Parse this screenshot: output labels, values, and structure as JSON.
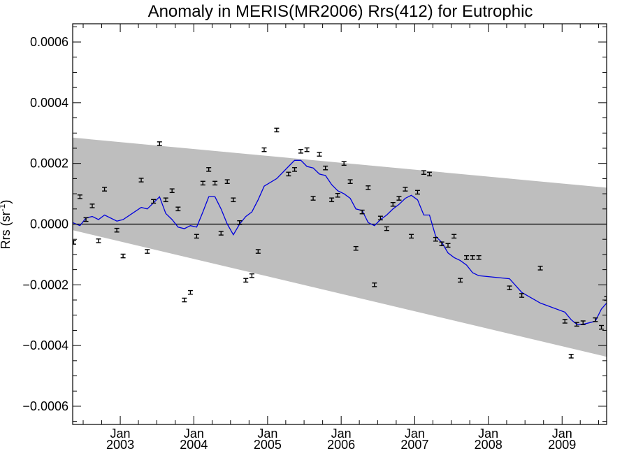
{
  "chart_data": {
    "type": "line",
    "title": "Anomaly in MERIS(MR2006) Rrs(412) for Eutrophic",
    "ylabel": "Rrs (sr",
    "ylabel_superscript": "-1",
    "ylabel_close": ")",
    "xlim": [
      "2002-05-10",
      "2009-08-10"
    ],
    "ylim": [
      -0.00066,
      0.00066
    ],
    "y_ticks": [
      -0.0006,
      -0.0004,
      -0.0002,
      0.0,
      0.0002,
      0.0004,
      0.0006
    ],
    "y_tick_labels": [
      "−0.0006",
      "−0.0004",
      "−0.0002",
      "0.0000",
      "0.0002",
      "0.0004",
      "0.0006"
    ],
    "x_ticks": [
      {
        "date": "2003-01-01",
        "month": "Jan",
        "year": "2003"
      },
      {
        "date": "2004-01-01",
        "month": "Jan",
        "year": "2004"
      },
      {
        "date": "2005-01-01",
        "month": "Jan",
        "year": "2005"
      },
      {
        "date": "2006-01-01",
        "month": "Jan",
        "year": "2006"
      },
      {
        "date": "2007-01-01",
        "month": "Jan",
        "year": "2007"
      },
      {
        "date": "2008-01-01",
        "month": "Jan",
        "year": "2008"
      },
      {
        "date": "2009-01-01",
        "month": "Jan",
        "year": "2009"
      }
    ],
    "zero_line": 0.0,
    "band": {
      "upper": [
        [
          "2002-05-10",
          0.000285
        ],
        [
          "2009-08-10",
          0.00012
        ]
      ],
      "lower": [
        [
          "2002-05-10",
          -2e-05
        ],
        [
          "2009-08-10",
          -0.000437
        ]
      ],
      "color": "#bebebe"
    },
    "series": [
      {
        "type": "errorbar",
        "color": "#000000",
        "error": 6e-06,
        "points": [
          [
            "2002-05-15",
            -6e-05
          ],
          [
            "2002-06-15",
            9e-05
          ],
          [
            "2002-07-15",
            1.5e-05
          ],
          [
            "2002-08-15",
            6e-05
          ],
          [
            "2002-09-15",
            -5.5e-05
          ],
          [
            "2002-10-15",
            0.000115
          ],
          [
            "2002-12-15",
            -2e-05
          ],
          [
            "2003-01-15",
            -0.000105
          ],
          [
            "2003-04-15",
            0.000145
          ],
          [
            "2003-05-15",
            -9e-05
          ],
          [
            "2003-06-15",
            7.5e-05
          ],
          [
            "2003-07-15",
            0.000265
          ],
          [
            "2003-08-15",
            8e-05
          ],
          [
            "2003-09-15",
            0.00011
          ],
          [
            "2003-10-15",
            5e-05
          ],
          [
            "2003-11-15",
            -0.00025
          ],
          [
            "2003-12-15",
            -0.000225
          ],
          [
            "2004-01-15",
            -4e-05
          ],
          [
            "2004-02-15",
            0.000135
          ],
          [
            "2004-03-15",
            0.00018
          ],
          [
            "2004-04-15",
            0.000135
          ],
          [
            "2004-05-15",
            -3e-05
          ],
          [
            "2004-06-15",
            0.00014
          ],
          [
            "2004-07-15",
            8e-05
          ],
          [
            "2004-08-15",
            5e-06
          ],
          [
            "2004-09-15",
            -0.000185
          ],
          [
            "2004-10-15",
            -0.00017
          ],
          [
            "2004-11-15",
            -9e-05
          ],
          [
            "2004-12-15",
            0.000245
          ],
          [
            "2005-02-15",
            0.00031
          ],
          [
            "2005-04-15",
            0.000165
          ],
          [
            "2005-05-15",
            0.00018
          ],
          [
            "2005-06-15",
            0.00024
          ],
          [
            "2005-07-15",
            0.000245
          ],
          [
            "2005-08-15",
            8.5e-05
          ],
          [
            "2005-09-15",
            0.00023
          ],
          [
            "2005-10-15",
            0.000185
          ],
          [
            "2005-11-15",
            8e-05
          ],
          [
            "2005-12-15",
            9.5e-05
          ],
          [
            "2006-01-15",
            0.0002
          ],
          [
            "2006-02-15",
            0.00014
          ],
          [
            "2006-03-15",
            -8e-05
          ],
          [
            "2006-04-15",
            4e-05
          ],
          [
            "2006-05-15",
            0.00012
          ],
          [
            "2006-06-15",
            -0.0002
          ],
          [
            "2006-07-15",
            2e-05
          ],
          [
            "2006-08-15",
            -1.5e-05
          ],
          [
            "2006-09-15",
            6.5e-05
          ],
          [
            "2006-10-15",
            8.5e-05
          ],
          [
            "2006-11-15",
            0.000115
          ],
          [
            "2006-12-15",
            -4e-05
          ],
          [
            "2007-01-15",
            0.000105
          ],
          [
            "2007-02-15",
            0.00017
          ],
          [
            "2007-03-15",
            0.000165
          ],
          [
            "2007-04-15",
            -5e-05
          ],
          [
            "2007-05-15",
            -6.5e-05
          ],
          [
            "2007-06-15",
            -7e-05
          ],
          [
            "2007-07-15",
            -4e-05
          ],
          [
            "2007-08-15",
            -0.000185
          ],
          [
            "2007-09-15",
            -0.00011
          ],
          [
            "2007-10-15",
            -0.00011
          ],
          [
            "2007-11-15",
            -0.00011
          ],
          [
            "2008-04-15",
            -0.00021
          ],
          [
            "2008-06-15",
            -0.000235
          ],
          [
            "2008-09-15",
            -0.000145
          ],
          [
            "2009-01-15",
            -0.00032
          ],
          [
            "2009-02-15",
            -0.000435
          ],
          [
            "2009-03-15",
            -0.00033
          ],
          [
            "2009-04-15",
            -0.000325
          ],
          [
            "2009-06-15",
            -0.000315
          ],
          [
            "2009-07-15",
            -0.00034
          ],
          [
            "2009-08-10",
            -0.000245
          ]
        ]
      },
      {
        "type": "line",
        "color": "#0000dd",
        "points": [
          [
            "2002-05-10",
            5e-06
          ],
          [
            "2002-06-15",
            -5e-06
          ],
          [
            "2002-07-15",
            2e-05
          ],
          [
            "2002-08-15",
            2.5e-05
          ],
          [
            "2002-09-15",
            1.5e-05
          ],
          [
            "2002-10-15",
            3e-05
          ],
          [
            "2002-12-15",
            1e-05
          ],
          [
            "2003-01-15",
            1.5e-05
          ],
          [
            "2003-04-15",
            5.5e-05
          ],
          [
            "2003-05-15",
            5e-05
          ],
          [
            "2003-06-15",
            7e-05
          ],
          [
            "2003-07-15",
            9e-05
          ],
          [
            "2003-08-15",
            3.5e-05
          ],
          [
            "2003-09-15",
            1.5e-05
          ],
          [
            "2003-10-15",
            -1e-05
          ],
          [
            "2003-11-15",
            -1.5e-05
          ],
          [
            "2003-12-15",
            -5e-06
          ],
          [
            "2004-01-15",
            -1e-05
          ],
          [
            "2004-02-15",
            4e-05
          ],
          [
            "2004-03-15",
            9e-05
          ],
          [
            "2004-04-15",
            9e-05
          ],
          [
            "2004-05-15",
            5e-05
          ],
          [
            "2004-06-15",
            0.0
          ],
          [
            "2004-07-15",
            -3.5e-05
          ],
          [
            "2004-08-15",
            0.0
          ],
          [
            "2004-09-15",
            2.5e-05
          ],
          [
            "2004-10-15",
            4e-05
          ],
          [
            "2004-11-15",
            8e-05
          ],
          [
            "2004-12-15",
            0.000125
          ],
          [
            "2005-02-15",
            0.00015
          ],
          [
            "2005-04-15",
            0.00019
          ],
          [
            "2005-05-15",
            0.00021
          ],
          [
            "2005-06-15",
            0.00021
          ],
          [
            "2005-07-15",
            0.00019
          ],
          [
            "2005-08-15",
            0.000185
          ],
          [
            "2005-09-15",
            0.000165
          ],
          [
            "2005-10-15",
            0.00016
          ],
          [
            "2005-11-15",
            0.00013
          ],
          [
            "2005-12-15",
            0.00011
          ],
          [
            "2006-01-15",
            0.0001
          ],
          [
            "2006-02-15",
            8.5e-05
          ],
          [
            "2006-03-15",
            5e-05
          ],
          [
            "2006-04-15",
            4.5e-05
          ],
          [
            "2006-05-15",
            5e-06
          ],
          [
            "2006-06-15",
            -5e-06
          ],
          [
            "2006-07-15",
            1.5e-05
          ],
          [
            "2006-08-15",
            3e-05
          ],
          [
            "2006-09-15",
            5e-05
          ],
          [
            "2006-10-15",
            6.5e-05
          ],
          [
            "2006-11-15",
            8.5e-05
          ],
          [
            "2006-12-15",
            9.5e-05
          ],
          [
            "2007-01-15",
            8e-05
          ],
          [
            "2007-02-15",
            3e-05
          ],
          [
            "2007-03-15",
            3e-05
          ],
          [
            "2007-04-15",
            -4e-05
          ],
          [
            "2007-05-15",
            -6e-05
          ],
          [
            "2007-06-15",
            -9.5e-05
          ],
          [
            "2007-07-15",
            -0.00011
          ],
          [
            "2007-08-15",
            -0.00012
          ],
          [
            "2007-09-15",
            -0.000135
          ],
          [
            "2007-10-15",
            -0.00016
          ],
          [
            "2007-11-15",
            -0.00017
          ],
          [
            "2008-04-15",
            -0.00018
          ],
          [
            "2008-06-15",
            -0.000225
          ],
          [
            "2008-09-15",
            -0.00026
          ],
          [
            "2009-01-15",
            -0.00029
          ],
          [
            "2009-02-15",
            -0.000315
          ],
          [
            "2009-03-15",
            -0.00033
          ],
          [
            "2009-04-15",
            -0.00033
          ],
          [
            "2009-06-15",
            -0.00032
          ],
          [
            "2009-07-15",
            -0.00028
          ],
          [
            "2009-08-10",
            -0.00026
          ]
        ]
      }
    ],
    "grid": false,
    "legend": "none"
  }
}
